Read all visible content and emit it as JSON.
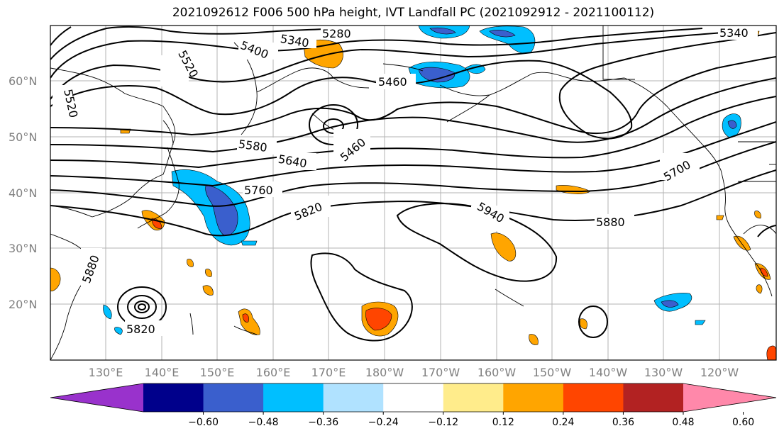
{
  "title": "2021092612 F006 500 hPa height, IVT Landfall PC (2021092912 - 2021100112)",
  "lat_labels": [
    "20°N",
    "30°N",
    "40°N",
    "50°N",
    "60°N"
  ],
  "lon_labels": [
    "130°E",
    "140°E",
    "150°E",
    "160°E",
    "170°E",
    "180°W",
    "170°W",
    "160°W",
    "150°W",
    "140°W",
    "130°W",
    "120°W"
  ],
  "contour_labels": [
    "5280",
    "5340",
    "5340",
    "5400",
    "5460",
    "5460",
    "5520",
    "5520",
    "5580",
    "5640",
    "5700",
    "5760",
    "5820",
    "5820",
    "5880",
    "5880",
    "5940"
  ],
  "colorbar": {
    "tick_labels": [
      "−0.60",
      "−0.48",
      "−0.36",
      "−0.24",
      "−0.12",
      "0.12",
      "0.24",
      "0.36",
      "0.48",
      "0.60"
    ],
    "colors": [
      "#9932CC",
      "#00008B",
      "#3A5FCD",
      "#00BFFF",
      "#B0E2FF",
      "#FFFFFF",
      "#FFEC8B",
      "#FFA500",
      "#FF4500",
      "#B22222",
      "#FF88AA"
    ]
  }
}
